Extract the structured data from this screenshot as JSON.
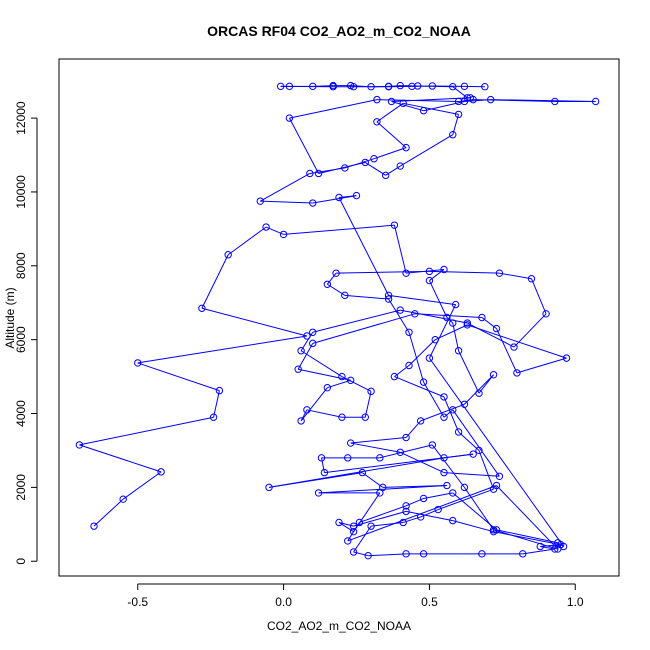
{
  "chart_data": {
    "type": "scatter",
    "title": "ORCAS RF04 CO2_AO2_m_CO2_NOAA",
    "xlabel": "CO2_AO2_m_CO2_NOAA",
    "ylabel": "Altitude (m)",
    "xlim": [
      -0.77,
      1.15
    ],
    "ylim": [
      -400,
      13600
    ],
    "xticks": [
      -0.5,
      0.0,
      0.5,
      1.0
    ],
    "xtick_labels": [
      "-0.5",
      "0.0",
      "0.5",
      "1.0"
    ],
    "yticks": [
      0,
      2000,
      4000,
      6000,
      8000,
      10000,
      12000
    ],
    "ytick_labels": [
      "0",
      "2000",
      "4000",
      "6000",
      "8000",
      "10000",
      "12000"
    ],
    "grid": false,
    "legend": "none",
    "color": "#0000ff",
    "series": [
      {
        "style": "line+points",
        "points": [
          [
            -0.65,
            950
          ],
          [
            -0.55,
            1680
          ],
          [
            -0.42,
            2420
          ],
          [
            -0.7,
            3150
          ],
          [
            -0.24,
            3900
          ],
          [
            -0.22,
            4620
          ],
          [
            -0.5,
            5370
          ],
          [
            0.08,
            6100
          ],
          [
            -0.28,
            6850
          ],
          [
            -0.19,
            8300
          ],
          [
            -0.06,
            9050
          ],
          [
            0.0,
            8850
          ],
          [
            0.38,
            9100
          ],
          [
            0.42,
            7800
          ],
          [
            0.55,
            7900
          ],
          [
            0.5,
            7600
          ],
          [
            0.56,
            6600
          ],
          [
            0.58,
            6450
          ],
          [
            0.6,
            5700
          ],
          [
            0.67,
            4550
          ],
          [
            0.72,
            5050
          ],
          [
            0.62,
            4250
          ],
          [
            0.47,
            3800
          ],
          [
            0.42,
            3350
          ],
          [
            0.23,
            3200
          ],
          [
            0.4,
            2950
          ],
          [
            0.55,
            2400
          ],
          [
            0.74,
            2300
          ],
          [
            0.58,
            4100
          ],
          [
            0.55,
            3900
          ],
          [
            0.48,
            4850
          ],
          [
            0.43,
            6200
          ],
          [
            0.36,
            7100
          ],
          [
            0.21,
            7200
          ],
          [
            0.15,
            7500
          ],
          [
            0.18,
            7800
          ],
          [
            0.5,
            7850
          ],
          [
            0.74,
            7800
          ],
          [
            0.85,
            7650
          ],
          [
            0.9,
            6700
          ],
          [
            0.79,
            5800
          ],
          [
            0.63,
            6450
          ],
          [
            0.4,
            6800
          ],
          [
            0.1,
            6200
          ],
          [
            0.06,
            5700
          ],
          [
            0.2,
            5000
          ],
          [
            0.3,
            4600
          ],
          [
            0.28,
            3900
          ],
          [
            0.2,
            3900
          ],
          [
            0.08,
            4100
          ],
          [
            0.06,
            3800
          ],
          [
            0.15,
            4700
          ],
          [
            0.23,
            4900
          ],
          [
            0.05,
            5200
          ],
          [
            0.1,
            5900
          ],
          [
            0.45,
            6700
          ],
          [
            0.68,
            6600
          ],
          [
            0.73,
            6300
          ],
          [
            0.8,
            5100
          ],
          [
            0.97,
            5500
          ],
          [
            0.63,
            6400
          ],
          [
            0.52,
            6000
          ],
          [
            0.43,
            5300
          ],
          [
            0.38,
            5000
          ],
          [
            0.55,
            4450
          ],
          [
            0.6,
            3500
          ],
          [
            0.67,
            3000
          ],
          [
            0.72,
            1950
          ],
          [
            0.53,
            1400
          ],
          [
            0.47,
            1200
          ],
          [
            0.41,
            1050
          ],
          [
            0.3,
            950
          ],
          [
            0.24,
            250
          ],
          [
            0.29,
            150
          ],
          [
            0.42,
            200
          ],
          [
            0.48,
            200
          ],
          [
            0.68,
            200
          ],
          [
            0.82,
            200
          ],
          [
            0.93,
            330
          ],
          [
            0.88,
            400
          ],
          [
            0.95,
            450
          ],
          [
            0.72,
            800
          ],
          [
            0.58,
            1100
          ],
          [
            0.42,
            1350
          ],
          [
            0.24,
            950
          ],
          [
            0.19,
            1050
          ],
          [
            0.24,
            800
          ],
          [
            0.33,
            1850
          ],
          [
            0.12,
            1850
          ],
          [
            0.56,
            2050
          ],
          [
            0.34,
            2000
          ],
          [
            0.27,
            2400
          ],
          [
            -0.05,
            2000
          ],
          [
            0.55,
            2800
          ],
          [
            0.65,
            2900
          ],
          [
            0.14,
            2400
          ],
          [
            0.13,
            2800
          ],
          [
            0.22,
            2800
          ],
          [
            0.33,
            2800
          ],
          [
            0.51,
            3150
          ],
          [
            0.62,
            2000
          ],
          [
            0.72,
            850
          ],
          [
            0.94,
            330
          ],
          [
            0.73,
            2050
          ],
          [
            0.22,
            550
          ],
          [
            0.26,
            1050
          ],
          [
            0.42,
            1500
          ],
          [
            0.48,
            1700
          ],
          [
            0.58,
            1850
          ],
          [
            0.73,
            850
          ],
          [
            0.94,
            500
          ],
          [
            0.96,
            400
          ],
          [
            0.5,
            5500
          ],
          [
            0.59,
            6950
          ],
          [
            0.36,
            7200
          ],
          [
            0.19,
            9850
          ],
          [
            0.25,
            9900
          ],
          [
            0.1,
            9700
          ],
          [
            -0.08,
            9750
          ],
          [
            0.09,
            10500
          ],
          [
            0.21,
            10650
          ],
          [
            0.31,
            10900
          ],
          [
            0.42,
            11200
          ],
          [
            0.32,
            11900
          ],
          [
            0.41,
            12400
          ],
          [
            0.6,
            12100
          ],
          [
            0.58,
            11550
          ],
          [
            0.4,
            10700
          ],
          [
            0.35,
            10450
          ],
          [
            0.28,
            10800
          ],
          [
            0.12,
            10500
          ],
          [
            0.02,
            12000
          ],
          [
            0.32,
            12500
          ],
          [
            0.6,
            12450
          ],
          [
            0.65,
            12500
          ],
          [
            0.93,
            12450
          ],
          [
            1.07,
            12450
          ],
          [
            0.71,
            12500
          ],
          [
            0.62,
            12450
          ],
          [
            0.48,
            12200
          ],
          [
            0.37,
            12450
          ],
          [
            0.64,
            12550
          ],
          [
            0.63,
            12550
          ],
          [
            0.58,
            12850
          ],
          [
            0.46,
            12870
          ],
          [
            0.4,
            12880
          ],
          [
            0.36,
            12860
          ],
          [
            0.3,
            12850
          ],
          [
            0.23,
            12880
          ],
          [
            0.17,
            12880
          ],
          [
            0.1,
            12860
          ],
          [
            0.02,
            12860
          ],
          [
            -0.01,
            12860
          ],
          [
            0.17,
            12850
          ],
          [
            0.24,
            12850
          ],
          [
            0.36,
            12850
          ],
          [
            0.44,
            12860
          ],
          [
            0.51,
            12870
          ],
          [
            0.62,
            12860
          ],
          [
            0.69,
            12850
          ]
        ]
      }
    ]
  }
}
